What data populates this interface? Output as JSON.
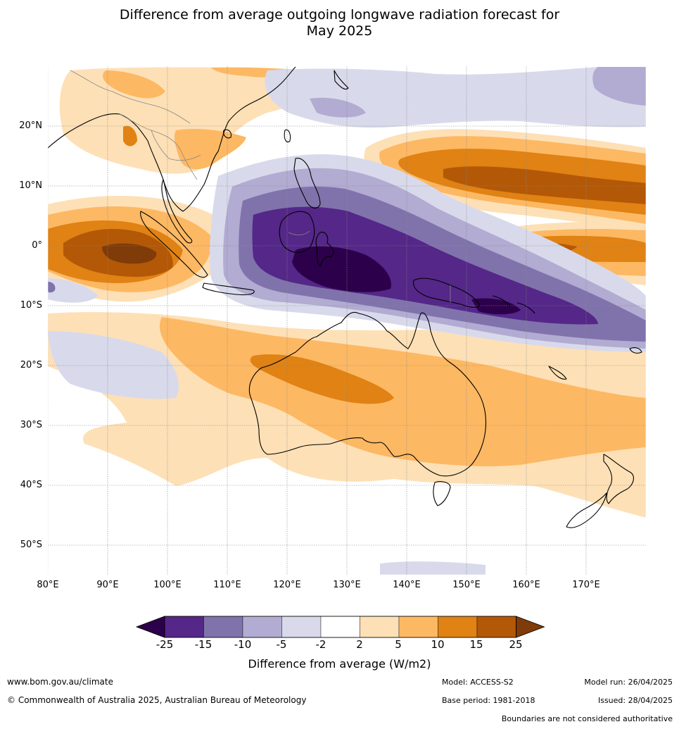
{
  "title": {
    "line1": "Difference from average outgoing longwave radiation forecast for",
    "line2": "May 2025"
  },
  "map": {
    "lon_labels": [
      "80°E",
      "90°E",
      "100°E",
      "110°E",
      "120°E",
      "130°E",
      "140°E",
      "150°E",
      "160°E",
      "170°E"
    ],
    "lat_labels": [
      "20°N",
      "10°N",
      "0°",
      "10°S",
      "20°S",
      "30°S",
      "40°S",
      "50°S"
    ],
    "colors": {
      "ocean_background": "#ffffff",
      "coastline": "#000000",
      "border": "#888888",
      "grid": "#888888"
    }
  },
  "legend": {
    "title": "Difference from average (W/m2)",
    "tick_labels": [
      "-25",
      "-15",
      "-10",
      "-5",
      "-2",
      "2",
      "5",
      "10",
      "15",
      "25"
    ],
    "colors": [
      "#2d004b",
      "#542788",
      "#8073ac",
      "#b2abd2",
      "#d8daeb",
      "#ffffff",
      "#fee0b6",
      "#fdb863",
      "#e08214",
      "#b35806",
      "#7f3b08"
    ]
  },
  "footer": {
    "website": "www.bom.gov.au/climate",
    "copyright": "© Commonwealth of Australia 2025, Australian Bureau of Meteorology",
    "model": "Model: ACCESS-S2",
    "base_period": "Base period: 1981-2018",
    "model_run": "Model run: 26/04/2025",
    "issued": "Issued: 28/04/2025",
    "disclaimer": "Boundaries are not considered authoritative"
  }
}
